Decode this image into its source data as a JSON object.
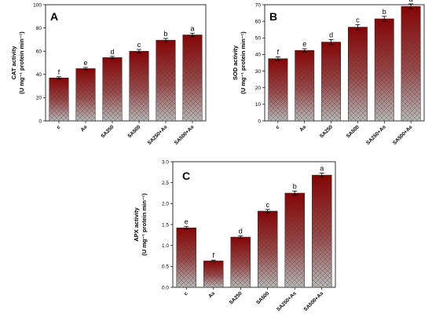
{
  "chart_data": [
    {
      "type": "bar",
      "panel_label": "A",
      "ylabel_line1": "CAT activity",
      "ylabel_line2": "(U mg⁻¹ protein min⁻¹)",
      "categories": [
        "c",
        "As",
        "SA250",
        "SA500",
        "SA250+As",
        "SA500+As"
      ],
      "values": [
        37,
        45,
        54.5,
        60,
        69.5,
        74
      ],
      "errors": [
        1,
        1,
        1,
        1.5,
        1.5,
        1.5
      ],
      "letters": [
        "f",
        "e",
        "d",
        "c",
        "b",
        "a"
      ],
      "ylim": [
        0,
        100
      ],
      "yticks": [
        0,
        20,
        40,
        60,
        80,
        100
      ],
      "grid": false,
      "bar_colors": {
        "top": "#8b0000",
        "bottom": "#b4b4b4"
      }
    },
    {
      "type": "bar",
      "panel_label": "B",
      "ylabel_line1": "SOD activity",
      "ylabel_line2": "(U mg⁻¹ protein min⁻¹)",
      "categories": [
        "c",
        "As",
        "SA250",
        "SA500",
        "SA250+As",
        "SA500+As"
      ],
      "values": [
        37.5,
        42.5,
        47.5,
        56.5,
        61.5,
        69
      ],
      "errors": [
        1,
        1,
        1.5,
        1.5,
        1.5,
        1.5
      ],
      "letters": [
        "f",
        "e",
        "d",
        "c",
        "b",
        "a"
      ],
      "ylim": [
        0,
        70
      ],
      "yticks": [
        0,
        10,
        20,
        30,
        40,
        50,
        60,
        70
      ],
      "grid": false,
      "bar_colors": {
        "top": "#8b0000",
        "bottom": "#b4b4b4"
      }
    },
    {
      "type": "bar",
      "panel_label": "C",
      "ylabel_line1": "APX activity",
      "ylabel_line2": "(U mg⁻¹ protein min⁻¹)",
      "categories": [
        "c",
        "As",
        "SA250",
        "SA500",
        "SA250+As",
        "SA500+As"
      ],
      "values": [
        1.42,
        0.63,
        1.2,
        1.82,
        2.25,
        2.68
      ],
      "errors": [
        0.03,
        0.02,
        0.03,
        0.04,
        0.05,
        0.05
      ],
      "letters": [
        "e",
        "f",
        "d",
        "c",
        "b",
        "a"
      ],
      "ylim": [
        0,
        3.0
      ],
      "yticks": [
        0.0,
        0.5,
        1.0,
        1.5,
        2.0,
        2.5,
        3.0
      ],
      "grid": false,
      "bar_colors": {
        "top": "#8b0000",
        "bottom": "#b4b4b4"
      }
    }
  ]
}
